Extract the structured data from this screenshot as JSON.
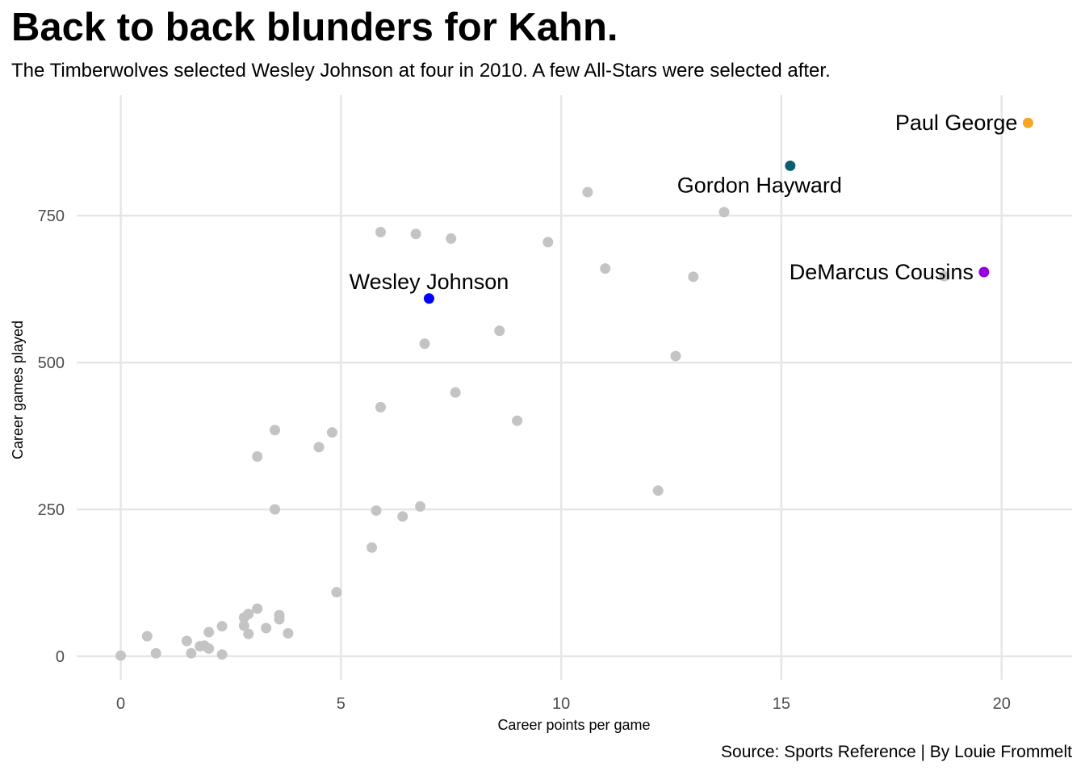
{
  "title": "Back to back blunders for Kahn.",
  "subtitle": "The Timberwolves selected Wesley Johnson at four in 2010. A few All-Stars were selected after.",
  "caption": "Source: Sports Reference | By Louie Frommelt",
  "chart_data": {
    "type": "scatter",
    "xlabel": "Career points per game",
    "ylabel": "Career games played",
    "xlim": [
      -1,
      21.6
    ],
    "ylim": [
      -40,
      955
    ],
    "x_ticks": [
      0,
      5,
      10,
      15,
      20
    ],
    "y_ticks": [
      0,
      250,
      500,
      750
    ],
    "grid": true,
    "base_color": "#c4c4c4",
    "points": [
      {
        "x": 0.0,
        "y": 1
      },
      {
        "x": 0.6,
        "y": 34
      },
      {
        "x": 0.8,
        "y": 5
      },
      {
        "x": 1.5,
        "y": 26
      },
      {
        "x": 1.6,
        "y": 5
      },
      {
        "x": 1.8,
        "y": 17
      },
      {
        "x": 1.9,
        "y": 18
      },
      {
        "x": 2.0,
        "y": 13
      },
      {
        "x": 2.0,
        "y": 41
      },
      {
        "x": 2.3,
        "y": 51
      },
      {
        "x": 2.3,
        "y": 3
      },
      {
        "x": 2.8,
        "y": 52
      },
      {
        "x": 2.8,
        "y": 66
      },
      {
        "x": 2.9,
        "y": 72
      },
      {
        "x": 2.9,
        "y": 38
      },
      {
        "x": 3.1,
        "y": 81
      },
      {
        "x": 3.3,
        "y": 48
      },
      {
        "x": 3.6,
        "y": 70
      },
      {
        "x": 3.6,
        "y": 63
      },
      {
        "x": 3.8,
        "y": 39
      },
      {
        "x": 3.1,
        "y": 340
      },
      {
        "x": 3.5,
        "y": 385
      },
      {
        "x": 3.5,
        "y": 250
      },
      {
        "x": 4.5,
        "y": 356
      },
      {
        "x": 4.8,
        "y": 381
      },
      {
        "x": 4.9,
        "y": 109
      },
      {
        "x": 5.7,
        "y": 185
      },
      {
        "x": 5.8,
        "y": 248
      },
      {
        "x": 5.9,
        "y": 424
      },
      {
        "x": 5.9,
        "y": 722
      },
      {
        "x": 6.4,
        "y": 238
      },
      {
        "x": 6.7,
        "y": 719
      },
      {
        "x": 6.8,
        "y": 255
      },
      {
        "x": 6.9,
        "y": 532
      },
      {
        "x": 7.5,
        "y": 711
      },
      {
        "x": 7.6,
        "y": 449
      },
      {
        "x": 8.6,
        "y": 554
      },
      {
        "x": 9.0,
        "y": 401
      },
      {
        "x": 9.7,
        "y": 705
      },
      {
        "x": 10.6,
        "y": 790
      },
      {
        "x": 11.0,
        "y": 660
      },
      {
        "x": 12.2,
        "y": 282
      },
      {
        "x": 12.6,
        "y": 511
      },
      {
        "x": 13.0,
        "y": 646
      },
      {
        "x": 13.7,
        "y": 756
      },
      {
        "x": 18.7,
        "y": 647
      }
    ],
    "highlights": [
      {
        "name": "Wesley Johnson",
        "x": 7.0,
        "y": 609,
        "color": "#0000ff",
        "label_dx": 0,
        "label_anchor": "middle",
        "label_pos": "above"
      },
      {
        "name": "Gordon Hayward",
        "x": 15.2,
        "y": 835,
        "color": "#0a5f6e",
        "label_anchor": "middle",
        "label_pos": "below"
      },
      {
        "name": "DeMarcus Cousins",
        "x": 19.6,
        "y": 654,
        "color": "#9400e0",
        "label_anchor": "end",
        "label_pos": "left"
      },
      {
        "name": "Paul George",
        "x": 20.6,
        "y": 908,
        "color": "#f5a623",
        "label_anchor": "end",
        "label_pos": "left"
      }
    ]
  }
}
